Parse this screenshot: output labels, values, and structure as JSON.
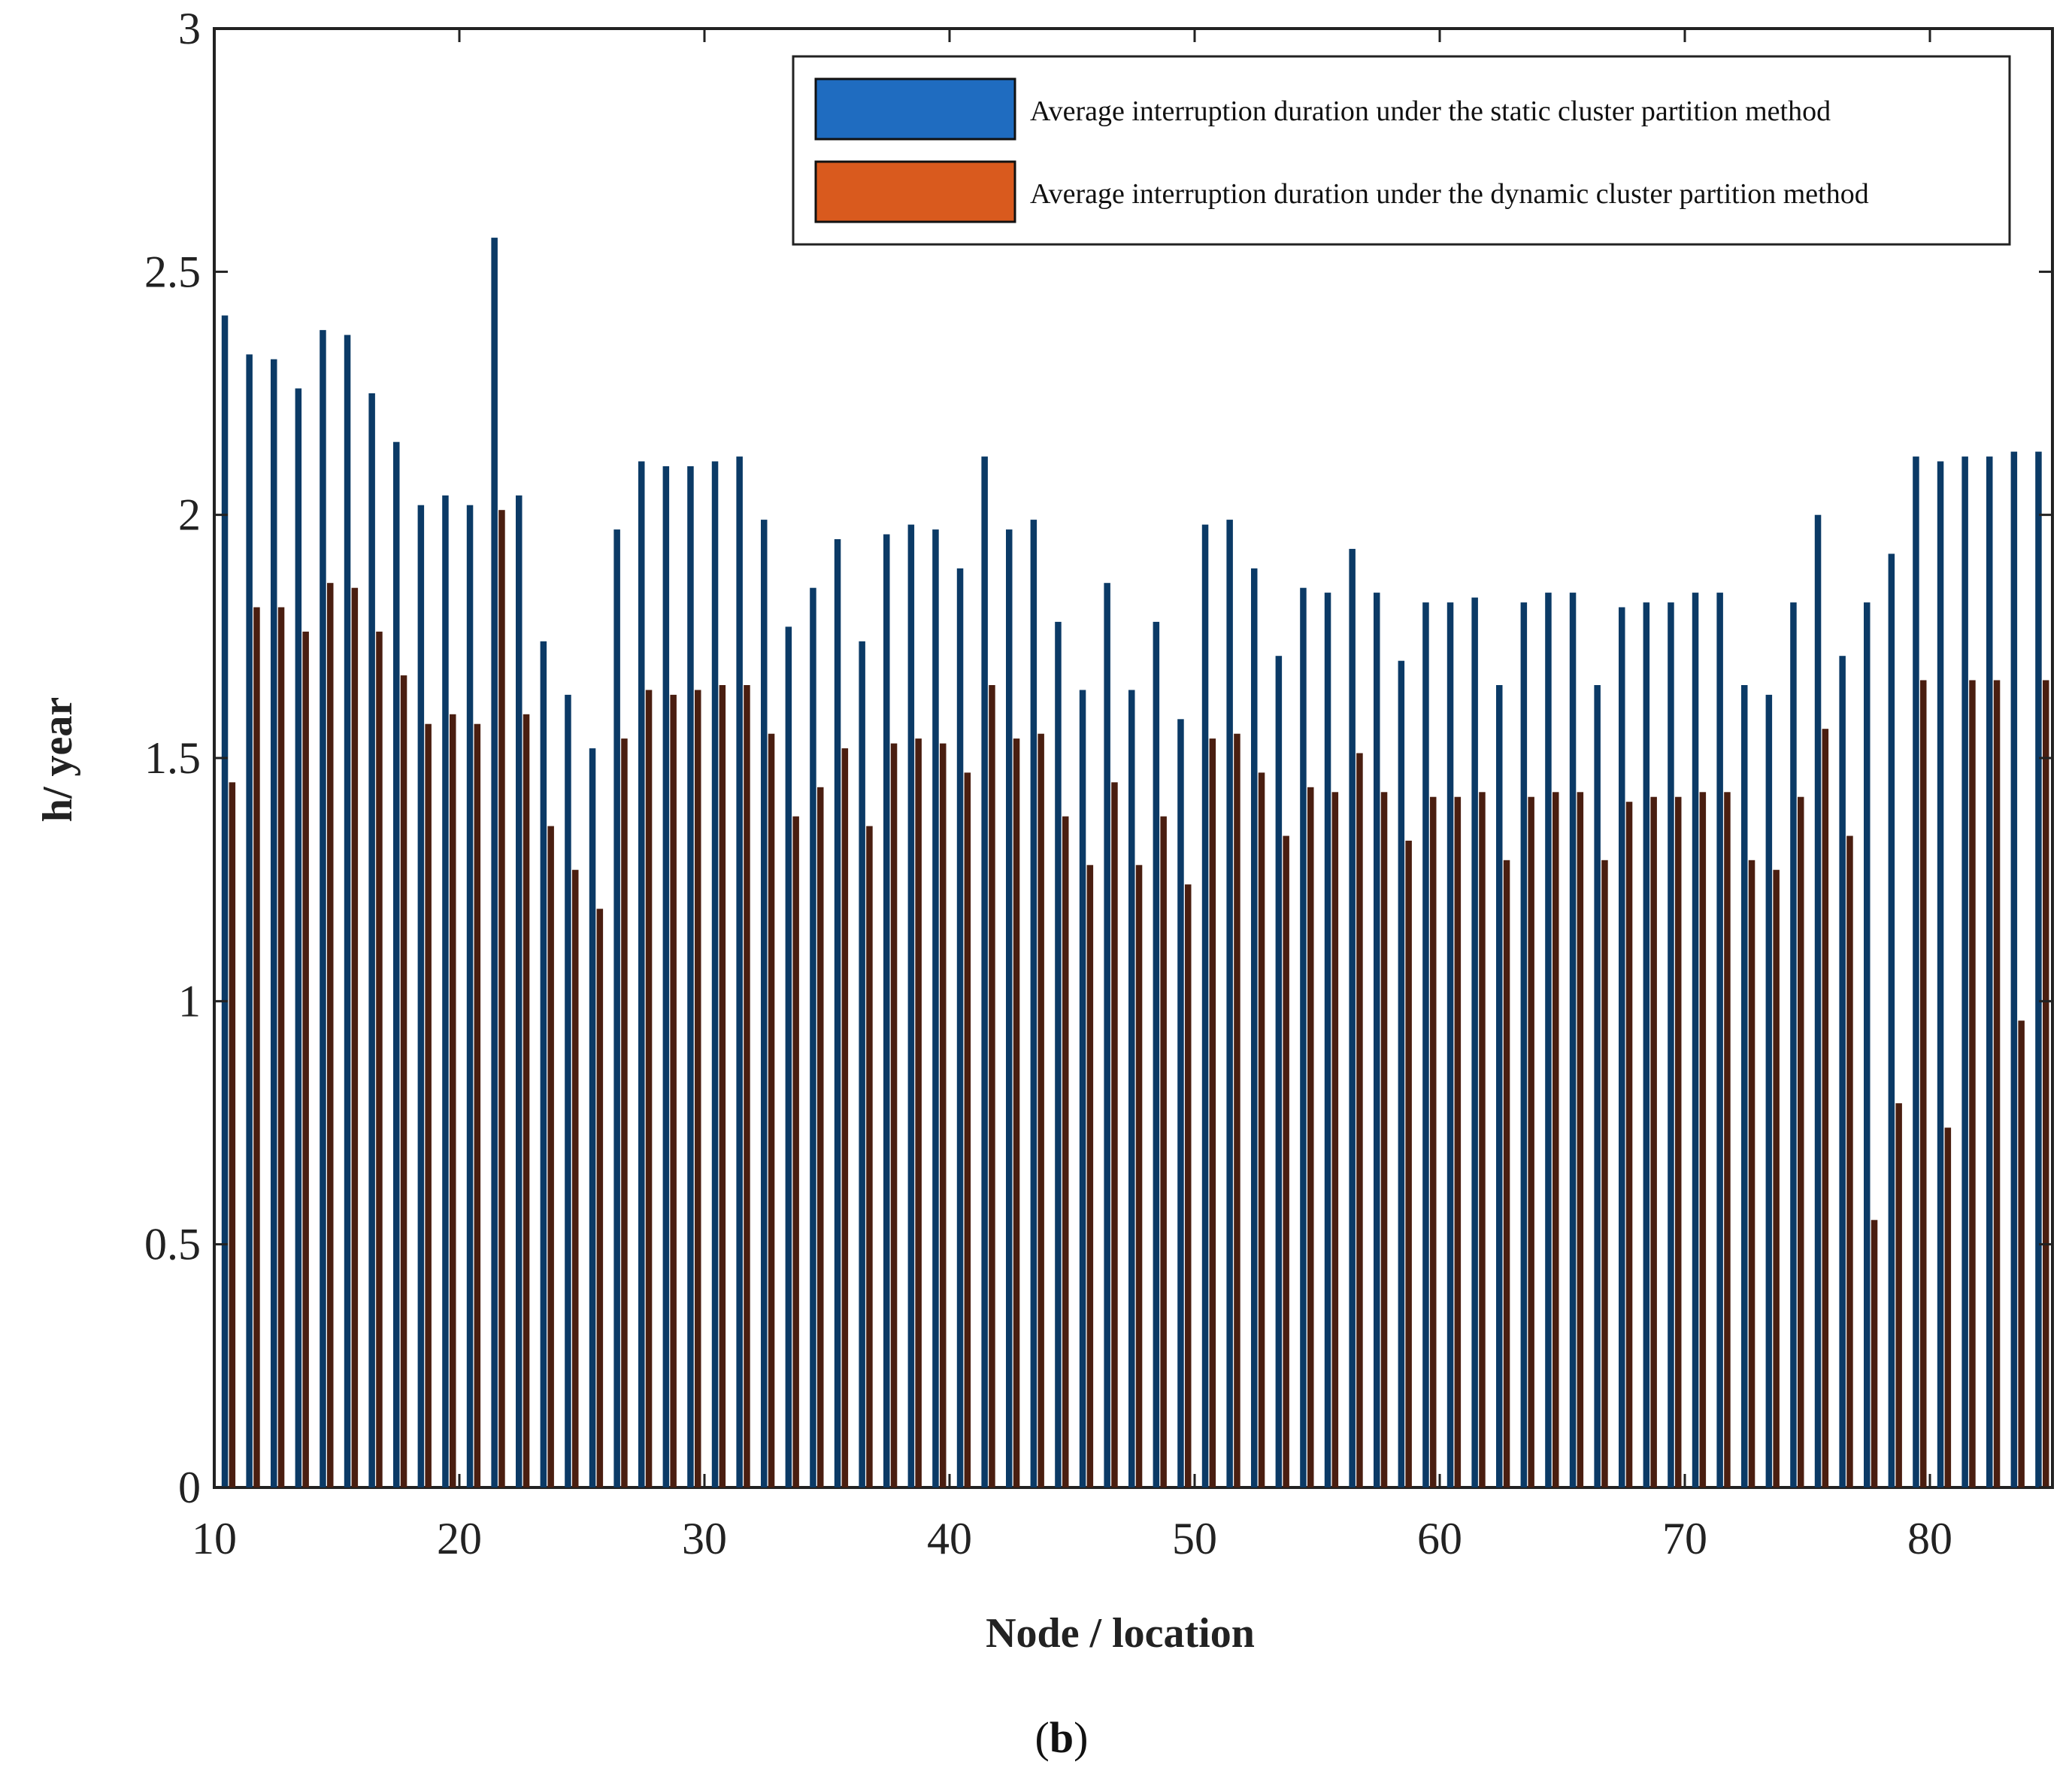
{
  "chart_data": {
    "type": "bar",
    "xlabel": "Node / location",
    "ylabel": "h/ year",
    "caption": "(b)",
    "caption_bold": "b",
    "xlim": [
      10,
      85
    ],
    "ylim": [
      0,
      3
    ],
    "xticks": [
      10,
      20,
      30,
      40,
      50,
      60,
      70,
      80
    ],
    "yticks": [
      0,
      0.5,
      1,
      1.5,
      2,
      2.5,
      3
    ],
    "ytick_labels": [
      "0",
      "0.5",
      "1",
      "1.5",
      "2",
      "2.5",
      "3"
    ],
    "legend_position": "top-right",
    "grid": false,
    "x": [
      11,
      12,
      13,
      14,
      15,
      16,
      17,
      18,
      19,
      20,
      21,
      22,
      23,
      24,
      25,
      26,
      27,
      28,
      29,
      30,
      31,
      32,
      33,
      34,
      35,
      36,
      37,
      38,
      39,
      40,
      41,
      42,
      43,
      44,
      45,
      46,
      47,
      48,
      49,
      50,
      51,
      52,
      53,
      54,
      55,
      56,
      57,
      58,
      59,
      60,
      61,
      62,
      63,
      64,
      65,
      66,
      67,
      68,
      69,
      70,
      71,
      72,
      73,
      74,
      75,
      76,
      77,
      78,
      79,
      80,
      81,
      82,
      83,
      84,
      85
    ],
    "series": [
      {
        "name": "Average interruption duration under the static cluster partition method",
        "color": "#0b3a66",
        "legend_color": "#1f6cc0",
        "values": [
          2.41,
          2.33,
          2.32,
          2.26,
          2.38,
          2.37,
          2.25,
          2.15,
          2.02,
          2.04,
          2.02,
          2.57,
          2.04,
          1.74,
          1.63,
          1.52,
          1.97,
          2.11,
          2.1,
          2.1,
          2.11,
          2.12,
          1.99,
          1.77,
          1.85,
          1.95,
          1.74,
          1.96,
          1.98,
          1.97,
          1.89,
          2.12,
          1.97,
          1.99,
          1.78,
          1.64,
          1.86,
          1.64,
          1.78,
          1.58,
          1.98,
          1.99,
          1.89,
          1.71,
          1.85,
          1.84,
          1.93,
          1.84,
          1.7,
          1.82,
          1.82,
          1.83,
          1.65,
          1.82,
          1.84,
          1.84,
          1.65,
          1.81,
          1.82,
          1.82,
          1.84,
          1.84,
          1.65,
          1.63,
          1.82,
          2.0,
          1.71,
          1.82,
          1.92,
          2.12,
          2.11,
          2.12,
          2.12,
          2.13,
          2.13
        ]
      },
      {
        "name": "Average interruption duration under the dynamic cluster partition method",
        "color": "#4a1e10",
        "legend_color": "#d95a1e",
        "values": [
          1.45,
          1.81,
          1.81,
          1.76,
          1.86,
          1.85,
          1.76,
          1.67,
          1.57,
          1.59,
          1.57,
          2.01,
          1.59,
          1.36,
          1.27,
          1.19,
          1.54,
          1.64,
          1.63,
          1.64,
          1.65,
          1.65,
          1.55,
          1.38,
          1.44,
          1.52,
          1.36,
          1.53,
          1.54,
          1.53,
          1.47,
          1.65,
          1.54,
          1.55,
          1.38,
          1.28,
          1.45,
          1.28,
          1.38,
          1.24,
          1.54,
          1.55,
          1.47,
          1.34,
          1.44,
          1.43,
          1.51,
          1.43,
          1.33,
          1.42,
          1.42,
          1.43,
          1.29,
          1.42,
          1.43,
          1.43,
          1.29,
          1.41,
          1.42,
          1.42,
          1.43,
          1.43,
          1.29,
          1.27,
          1.42,
          1.56,
          1.34,
          0.55,
          0.79,
          1.66,
          0.74,
          1.66,
          1.66,
          0.96,
          1.66
        ]
      }
    ]
  }
}
